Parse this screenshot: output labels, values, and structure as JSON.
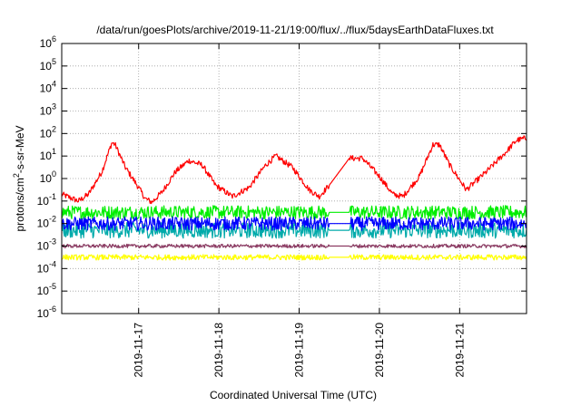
{
  "chart_data": {
    "type": "line",
    "title": "/data/run/goesPlots/archive/2019-11-21/19:00/flux/../flux/5daysEarthDataFluxes.txt",
    "xlabel": "Coordinated Universal Time (UTC)",
    "ylabel": {
      "base": "protons/cm",
      "sup": "2",
      "rest": "-s-sr-MeV"
    },
    "x_range_days": [
      "2019-11-16T01:00",
      "2019-11-21T20:00"
    ],
    "x_ticks": [
      "2019-11-17",
      "2019-11-18",
      "2019-11-19",
      "2019-11-20",
      "2019-11-21"
    ],
    "ylim_exponent": [
      -6,
      6
    ],
    "yscale": "log",
    "y_tick_labels": [
      {
        "base": "10",
        "exp": "-6"
      },
      {
        "base": "10",
        "exp": "-5"
      },
      {
        "base": "10",
        "exp": "-4"
      },
      {
        "base": "10",
        "exp": "-3"
      },
      {
        "base": "10",
        "exp": "-2"
      },
      {
        "base": "10",
        "exp": "-1"
      },
      {
        "base": "10",
        "exp": "0"
      },
      {
        "base": "10",
        "exp": "1"
      },
      {
        "base": "10",
        "exp": "2"
      },
      {
        "base": "10",
        "exp": "3"
      },
      {
        "base": "10",
        "exp": "4"
      },
      {
        "base": "10",
        "exp": "5"
      },
      {
        "base": "10",
        "exp": "6"
      }
    ],
    "grid": true,
    "data_gap": [
      "2019-11-19T09:00",
      "2019-11-19T15:00"
    ],
    "series": [
      {
        "color": "#ff0000",
        "points": [
          [
            "2019-11-16T01:00",
            -0.7
          ],
          [
            "2019-11-16T06:00",
            -1.0
          ],
          [
            "2019-11-16T09:00",
            -0.7
          ],
          [
            "2019-11-16T13:00",
            0.3
          ],
          [
            "2019-11-16T16:00",
            1.6
          ],
          [
            "2019-11-16T17:00",
            1.5
          ],
          [
            "2019-11-16T20:00",
            0.5
          ],
          [
            "2019-11-17T00:00",
            -0.4
          ],
          [
            "2019-11-17T02:00",
            -0.9
          ],
          [
            "2019-11-17T04:00",
            -1.05
          ],
          [
            "2019-11-17T07:00",
            -0.6
          ],
          [
            "2019-11-17T11:00",
            0.3
          ],
          [
            "2019-11-17T15:00",
            0.8
          ],
          [
            "2019-11-17T19:00",
            0.6
          ],
          [
            "2019-11-17T23:00",
            -0.3
          ],
          [
            "2019-11-18T04:00",
            -0.8
          ],
          [
            "2019-11-18T09:00",
            -0.4
          ],
          [
            "2019-11-18T14:00",
            0.6
          ],
          [
            "2019-11-18T17:00",
            1.0
          ],
          [
            "2019-11-18T22:00",
            0.5
          ],
          [
            "2019-11-19T03:00",
            -0.5
          ],
          [
            "2019-11-19T06:00",
            -0.8
          ],
          [
            "2019-11-19T09:00",
            -0.3
          ],
          [
            "2019-11-19T15:00",
            0.9
          ],
          [
            "2019-11-19T19:00",
            0.9
          ],
          [
            "2019-11-20T00:00",
            0.1
          ],
          [
            "2019-11-20T04:00",
            -0.7
          ],
          [
            "2019-11-20T07:00",
            -0.8
          ],
          [
            "2019-11-20T12:00",
            0.1
          ],
          [
            "2019-11-20T16:00",
            1.5
          ],
          [
            "2019-11-20T18:00",
            1.5
          ],
          [
            "2019-11-20T21:00",
            0.6
          ],
          [
            "2019-11-21T02:00",
            -0.5
          ],
          [
            "2019-11-21T08:00",
            0.3
          ],
          [
            "2019-11-21T14:00",
            1.2
          ],
          [
            "2019-11-21T17:00",
            1.7
          ],
          [
            "2019-11-21T20:00",
            1.8
          ]
        ],
        "noise": 0.13
      },
      {
        "color": "#00ee00",
        "points": [
          [
            "2019-11-16T01:00",
            -1.5
          ],
          [
            "2019-11-21T20:00",
            -1.5
          ]
        ],
        "noise": 0.3
      },
      {
        "color": "#00aaaa",
        "points": [
          [
            "2019-11-16T01:00",
            -2.3
          ],
          [
            "2019-11-21T20:00",
            -2.3
          ]
        ],
        "noise": 0.35
      },
      {
        "color": "#0000ff",
        "points": [
          [
            "2019-11-16T01:00",
            -2.0
          ],
          [
            "2019-11-21T20:00",
            -2.0
          ]
        ],
        "noise": 0.3
      },
      {
        "color": "#ffff00",
        "points": [
          [
            "2019-11-16T01:00",
            -3.5
          ],
          [
            "2019-11-21T20:00",
            -3.5
          ]
        ],
        "noise": 0.12
      },
      {
        "color": "#8b3a62",
        "points": [
          [
            "2019-11-16T01:00",
            -3.0
          ],
          [
            "2019-11-21T20:00",
            -3.0
          ]
        ],
        "noise": 0.08
      }
    ]
  }
}
